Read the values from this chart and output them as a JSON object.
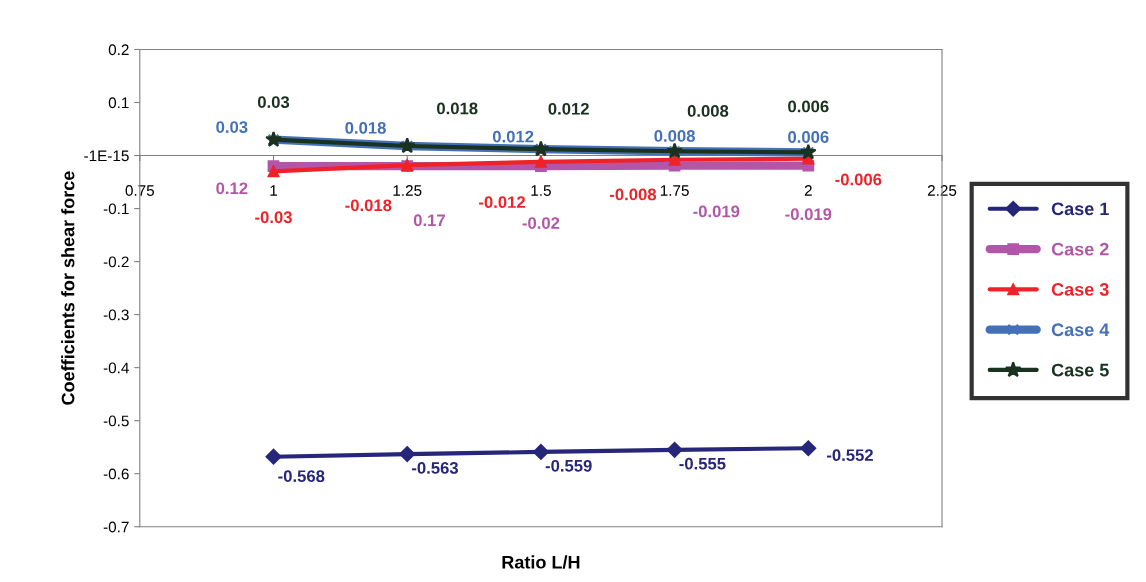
{
  "chart_data": {
    "type": "line",
    "xlabel": "Ratio L/H",
    "ylabel": "Coefficients for shear force",
    "x": [
      1,
      1.25,
      1.5,
      1.75,
      2
    ],
    "xlim": [
      0.75,
      2.25
    ],
    "xticks": [
      0.75,
      1,
      1.25,
      1.5,
      1.75,
      2,
      2.25
    ],
    "ylim": [
      -0.7,
      0.2
    ],
    "yticks": [
      -0.7,
      -0.6,
      -0.5,
      -0.4,
      -0.3,
      -0.2,
      -0.1,
      {
        "value": 0,
        "label": "-1E-15"
      },
      0.1,
      0.2
    ],
    "annotations": [
      {
        "text": "0.12",
        "x": 1,
        "y": -0.02
      },
      {
        "text": "0.17",
        "x": 1.25,
        "y": -0.02
      }
    ],
    "grid": false,
    "legend": "right",
    "line_style": "solid",
    "series": [
      {
        "name": "Case 1",
        "color": "#26267a",
        "marker": "diamond",
        "values": [
          -0.568,
          -0.563,
          -0.559,
          -0.555,
          -0.552
        ],
        "value_labels": [
          "-0.568",
          "-0.563",
          "-0.559",
          "-0.555",
          "-0.552"
        ]
      },
      {
        "name": "Case 2",
        "color": "#b356a8",
        "marker": "square",
        "values": [
          -0.02,
          -0.02,
          -0.02,
          -0.019,
          -0.019
        ],
        "value_labels": [
          null,
          null,
          "-0.02",
          "-0.019",
          "-0.019"
        ]
      },
      {
        "name": "Case 3",
        "color": "#ee2228",
        "marker": "triangle",
        "values": [
          -0.03,
          -0.018,
          -0.012,
          -0.008,
          -0.006
        ],
        "value_labels": [
          "-0.03",
          "-0.018",
          "-0.012",
          "-0.008",
          "-0.006"
        ]
      },
      {
        "name": "Case 4",
        "color": "#4470b8",
        "marker": "cross",
        "values": [
          0.03,
          0.018,
          0.012,
          0.008,
          0.006
        ],
        "value_labels": [
          "0.03",
          "0.018",
          "0.012",
          "0.008",
          "0.006"
        ]
      },
      {
        "name": "Case 5",
        "color": "#1a3320",
        "marker": "star",
        "values": [
          0.03,
          0.018,
          0.012,
          0.008,
          0.006
        ],
        "value_labels": [
          "0.03",
          "0.018",
          "0.012",
          "0.008",
          "0.006"
        ]
      }
    ]
  }
}
